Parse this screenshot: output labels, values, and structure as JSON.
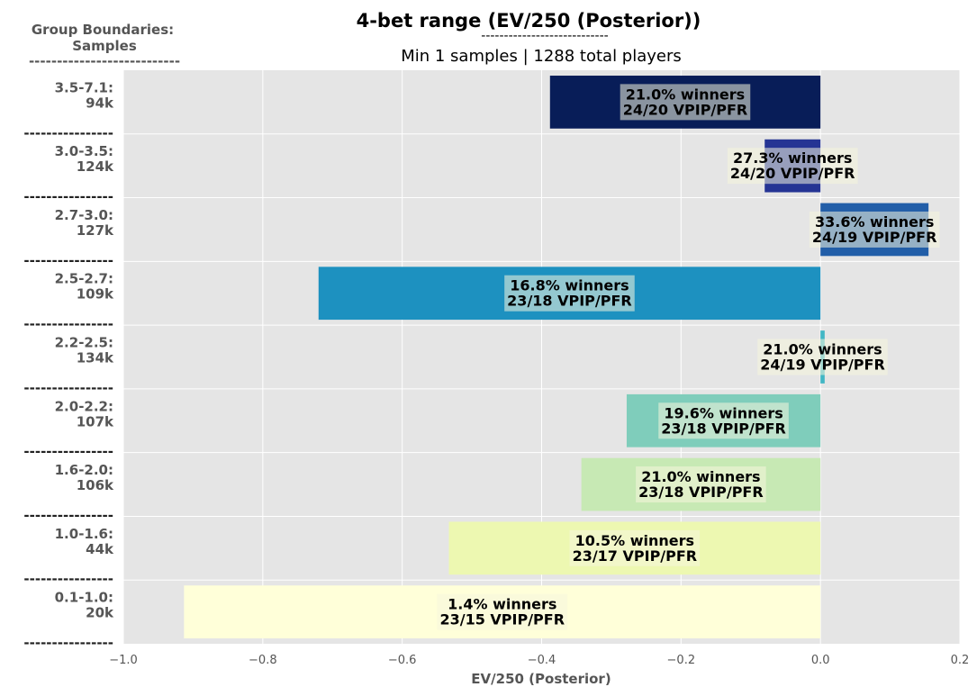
{
  "chart_data": {
    "type": "bar",
    "orientation": "horizontal",
    "title": "4-bet range (EV/250 (Posterior))",
    "title_underline": "----------------------------",
    "subtitle": "Min 1 samples | 1288 total players",
    "corner_label": {
      "line1": "Group Boundaries:",
      "line2": "Samples",
      "underline": "---------------------------"
    },
    "separator": "----------------",
    "xlabel": "EV/250 (Posterior)",
    "xlim": [
      -1.0,
      0.2
    ],
    "xticks": [
      -1.0,
      -0.8,
      -0.6,
      -0.4,
      -0.2,
      0.0,
      0.2
    ],
    "xtick_labels": [
      "−1.0",
      "−0.8",
      "−0.6",
      "−0.4",
      "−0.2",
      "0.0",
      "0.2"
    ],
    "grid": true,
    "categories": [
      {
        "range": "3.5-7.1:",
        "samples": "94k",
        "value": -0.388,
        "winners": "21.0% winners",
        "vpip_pfr": "24/20 VPIP/PFR",
        "color": "#081d58"
      },
      {
        "range": "3.0-3.5:",
        "samples": "124k",
        "value": -0.08,
        "winners": "27.3% winners",
        "vpip_pfr": "24/20 VPIP/PFR",
        "color": "#253494"
      },
      {
        "range": "2.7-3.0:",
        "samples": "127k",
        "value": 0.155,
        "winners": "33.6% winners",
        "vpip_pfr": "24/19 VPIP/PFR",
        "color": "#225ea8"
      },
      {
        "range": "2.5-2.7:",
        "samples": "109k",
        "value": -0.72,
        "winners": "16.8% winners",
        "vpip_pfr": "23/18 VPIP/PFR",
        "color": "#1d91c0"
      },
      {
        "range": "2.2-2.5:",
        "samples": "134k",
        "value": 0.006,
        "winners": "21.0% winners",
        "vpip_pfr": "24/19 VPIP/PFR",
        "color": "#41b6c4"
      },
      {
        "range": "2.0-2.2:",
        "samples": "107k",
        "value": -0.278,
        "winners": "19.6% winners",
        "vpip_pfr": "23/18 VPIP/PFR",
        "color": "#7fcdbb"
      },
      {
        "range": "1.6-2.0:",
        "samples": "106k",
        "value": -0.343,
        "winners": "21.0% winners",
        "vpip_pfr": "23/18 VPIP/PFR",
        "color": "#c7e9b4"
      },
      {
        "range": "1.0-1.6:",
        "samples": "44k",
        "value": -0.533,
        "winners": "10.5% winners",
        "vpip_pfr": "23/17 VPIP/PFR",
        "color": "#edf8b1"
      },
      {
        "range": "0.1-1.0:",
        "samples": "20k",
        "value": -0.913,
        "winners": "1.4% winners",
        "vpip_pfr": "23/15 VPIP/PFR",
        "color": "#ffffd9"
      }
    ]
  }
}
